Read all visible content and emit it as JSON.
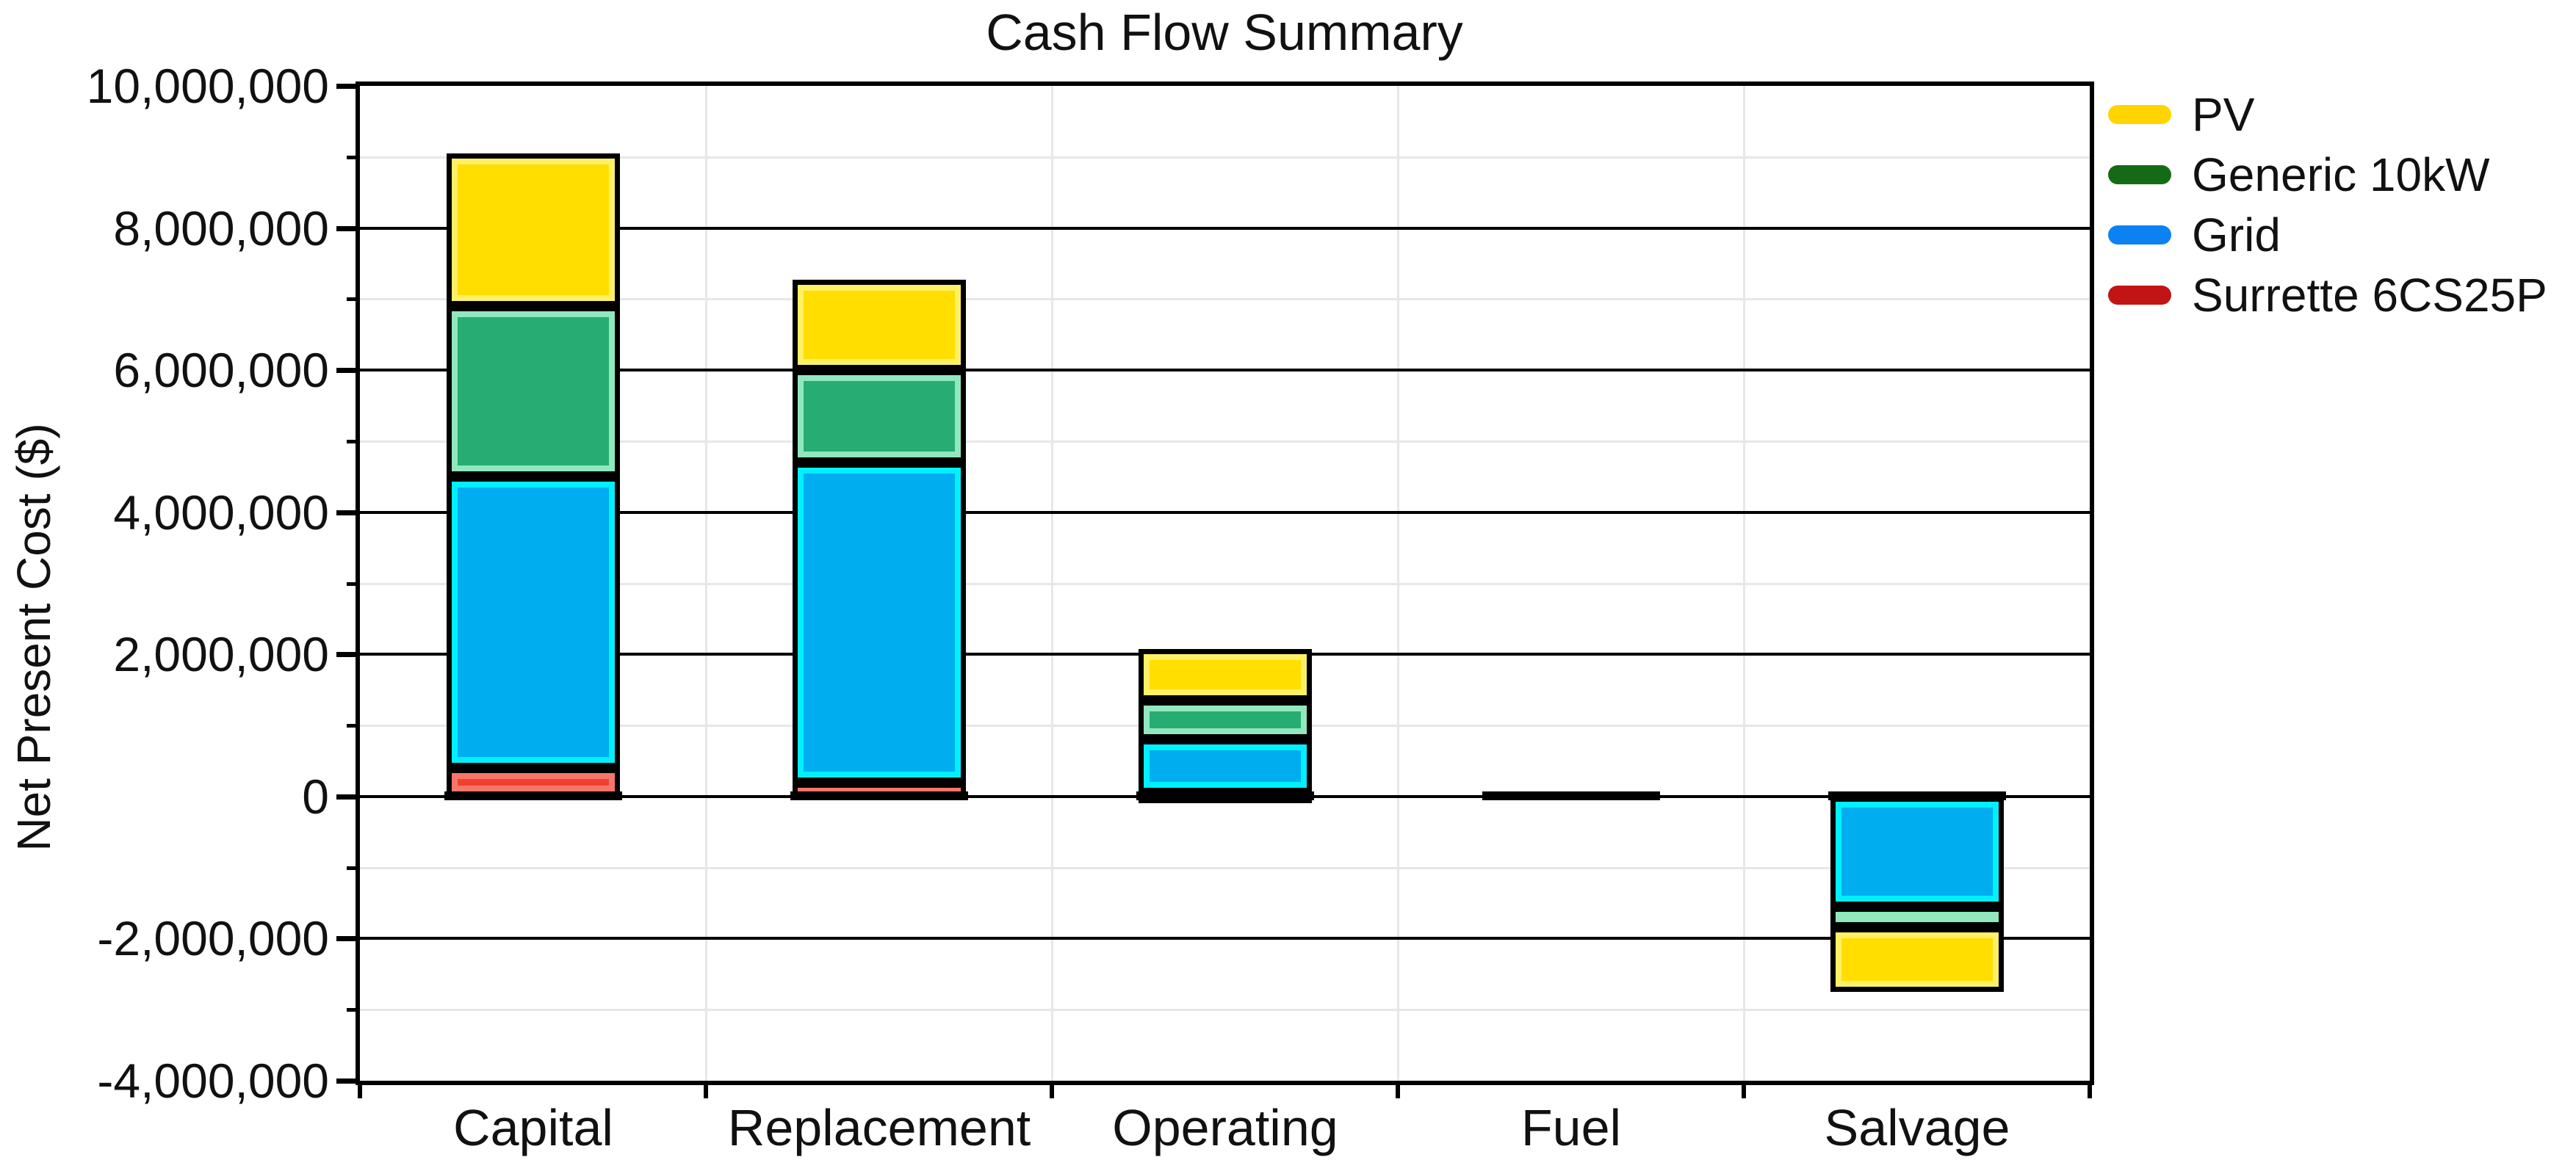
{
  "chart_data": {
    "type": "bar",
    "stacked": true,
    "title": "Cash Flow Summary",
    "xlabel": "",
    "ylabel": "Net Present Cost ($)",
    "ylim": [
      -4000000,
      10000000
    ],
    "y_major_step": 2000000,
    "y_minor_step": 1000000,
    "grid": true,
    "legend_position": "right",
    "categories": [
      "Capital",
      "Replacement",
      "Operating",
      "Fuel",
      "Salvage"
    ],
    "series": [
      {
        "name": "PV",
        "legend_color": "#FFD400",
        "fill_color": "#FFDE00",
        "highlight_color": "#FFF066",
        "values": [
          2150000,
          1270000,
          730000,
          0,
          -910000
        ]
      },
      {
        "name": "Generic 10kW",
        "legend_color": "#156B15",
        "fill_color": "#27AC74",
        "highlight_color": "#90E8BC",
        "values": [
          2400000,
          1300000,
          550000,
          0,
          -290000
        ]
      },
      {
        "name": "Grid",
        "legend_color": "#0C82F2",
        "fill_color": "#00AEF0",
        "highlight_color": "#00F0FF",
        "values": [
          4100000,
          4500000,
          750000,
          0,
          -1550000
        ]
      },
      {
        "name": "Surrette 6CS25P",
        "legend_color": "#C21414",
        "fill_color": "#EF4130",
        "highlight_color": "#F8756B",
        "values": [
          400000,
          200000,
          50000,
          0,
          0
        ]
      }
    ],
    "y_tick_labels": [
      "10,000,000",
      "8,000,000",
      "6,000,000",
      "4,000,000",
      "2,000,000",
      "0",
      "-2,000,000",
      "-4,000,000"
    ],
    "totals_by_category": [
      9050000,
      7270000,
      2080000,
      0,
      -2750000
    ]
  }
}
